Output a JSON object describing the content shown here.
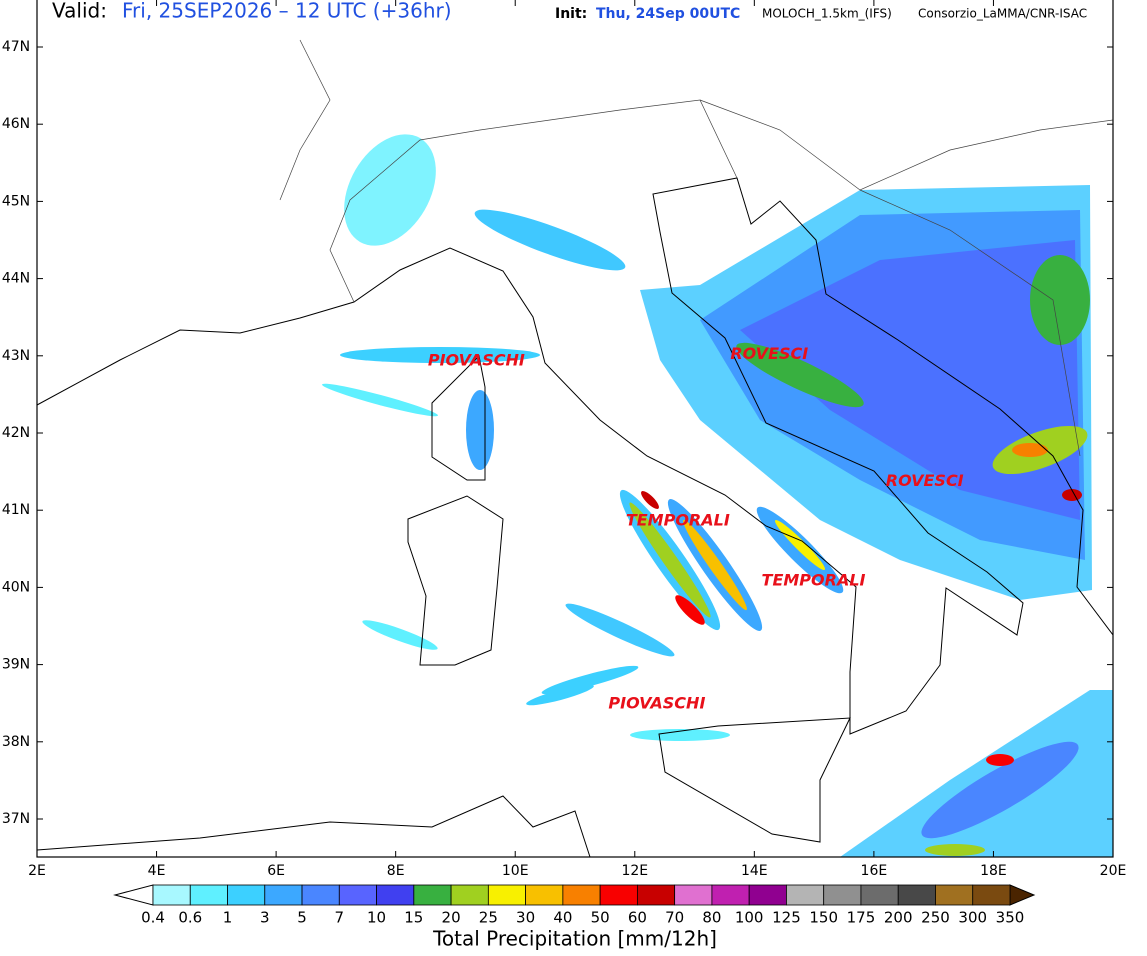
{
  "header": {
    "valid_label": "Valid:",
    "valid": "Fri, 25SEP2026 – 12 UTC (+36hr)",
    "init_label": "Init:",
    "init": "Thu, 24Sep 00UTC",
    "model": "MOLOCH_1.5km_(IFS)",
    "source": "Consorzio_LaMMA/CNR-ISAC"
  },
  "map": {
    "lon_range": [
      2,
      20
    ],
    "lat_range": [
      36.53,
      47.6
    ],
    "lon_ticks": [
      {
        "value": 2,
        "label": "2E"
      },
      {
        "value": 4,
        "label": "4E"
      },
      {
        "value": 6,
        "label": "6E"
      },
      {
        "value": 8,
        "label": "8E"
      },
      {
        "value": 10,
        "label": "10E"
      },
      {
        "value": 12,
        "label": "12E"
      },
      {
        "value": 14,
        "label": "14E"
      },
      {
        "value": 16,
        "label": "16E"
      },
      {
        "value": 18,
        "label": "18E"
      },
      {
        "value": 20,
        "label": "20E"
      }
    ],
    "lat_ticks": [
      {
        "value": 37,
        "label": "37N"
      },
      {
        "value": 38,
        "label": "38N"
      },
      {
        "value": 39,
        "label": "39N"
      },
      {
        "value": 40,
        "label": "40N"
      },
      {
        "value": 41,
        "label": "41N"
      },
      {
        "value": 42,
        "label": "42N"
      },
      {
        "value": 43,
        "label": "43N"
      },
      {
        "value": 44,
        "label": "44N"
      },
      {
        "value": 45,
        "label": "45N"
      },
      {
        "value": 46,
        "label": "46N"
      },
      {
        "value": 47,
        "label": "47N"
      }
    ],
    "annotations": [
      {
        "text": "PIOVASCHI",
        "lon": 9.35,
        "lat": 42.93
      },
      {
        "text": "ROVESCI",
        "lon": 14.25,
        "lat": 43.02
      },
      {
        "text": "ROVESCI",
        "lon": 16.85,
        "lat": 41.37
      },
      {
        "text": "TEMPORALI",
        "lon": 12.72,
        "lat": 40.86
      },
      {
        "text": "TEMPORALI",
        "lon": 14.99,
        "lat": 40.08
      },
      {
        "text": "PIOVASCHI",
        "lon": 12.37,
        "lat": 38.49
      }
    ]
  },
  "colorbar": {
    "title": "Total Precipitation [mm/12h]",
    "levels": [
      0.4,
      0.6,
      1,
      3,
      5,
      7,
      10,
      15,
      20,
      25,
      30,
      40,
      50,
      60,
      70,
      80,
      100,
      125,
      150,
      175,
      200,
      250,
      300,
      350
    ],
    "colors": [
      "#a8f8ff",
      "#5ff0ff",
      "#3cd0ff",
      "#3ca8ff",
      "#4a86ff",
      "#5864ff",
      "#4040f0",
      "#38b040",
      "#a0d020",
      "#f8f000",
      "#f8c000",
      "#f88000",
      "#f80000",
      "#c80000",
      "#e070d0",
      "#c020b0",
      "#900090",
      "#b4b4b4",
      "#909090",
      "#6c6c6c",
      "#484848",
      "#a07020",
      "#7a4a10",
      "#5a3000"
    ],
    "under_color": "#ffffff",
    "over_color": "#4a2400"
  }
}
